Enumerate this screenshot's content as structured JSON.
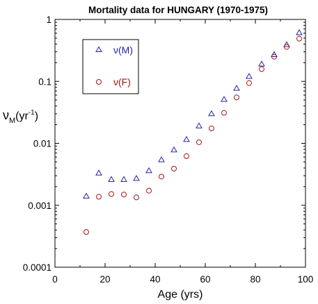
{
  "chart_data": {
    "type": "scatter",
    "title": "Mortality data for HUNGARY (1970-1975)",
    "xlabel": "Age (yrs)",
    "ylabel_main": "ν",
    "ylabel_sub": "M",
    "ylabel_unit_open": "(yr",
    "ylabel_unit_exp": "-1",
    "ylabel_unit_close": ")",
    "xlim": [
      0,
      100
    ],
    "ylim": [
      0.0001,
      1
    ],
    "yscale": "log",
    "grid": false,
    "legend_position": "top-left",
    "x_ticks": [
      0,
      20,
      40,
      60,
      80,
      100
    ],
    "y_ticks": [
      {
        "value": 0.0001,
        "label": "0.0001"
      },
      {
        "value": 0.001,
        "label": "0.001"
      },
      {
        "value": 0.01,
        "label": "0.01"
      },
      {
        "value": 0.1,
        "label": "0.1"
      },
      {
        "value": 1,
        "label": "1"
      }
    ],
    "series": [
      {
        "name": "ν(M)",
        "marker": "triangle",
        "color": "#2222aa",
        "x": [
          12.5,
          17.5,
          22.5,
          27.5,
          32.5,
          37.5,
          42.5,
          47.5,
          52.5,
          57.5,
          62.5,
          67.5,
          72.5,
          77.5,
          82.5,
          87.5,
          92.5,
          97.5
        ],
        "y": [
          0.0014,
          0.0033,
          0.0026,
          0.0026,
          0.0027,
          0.0036,
          0.0054,
          0.0078,
          0.0115,
          0.019,
          0.03,
          0.051,
          0.077,
          0.12,
          0.19,
          0.27,
          0.39,
          0.61
        ]
      },
      {
        "name": "ν(F)",
        "marker": "circle",
        "color": "#aa1111",
        "x": [
          12.5,
          17.5,
          22.5,
          27.5,
          32.5,
          37.5,
          42.5,
          47.5,
          52.5,
          57.5,
          62.5,
          67.5,
          72.5,
          77.5,
          82.5,
          87.5,
          92.5,
          97.5
        ],
        "y": [
          0.00037,
          0.00137,
          0.00152,
          0.00149,
          0.00134,
          0.00172,
          0.0029,
          0.0039,
          0.0062,
          0.0104,
          0.0174,
          0.031,
          0.055,
          0.094,
          0.158,
          0.25,
          0.36,
          0.49
        ]
      }
    ]
  }
}
